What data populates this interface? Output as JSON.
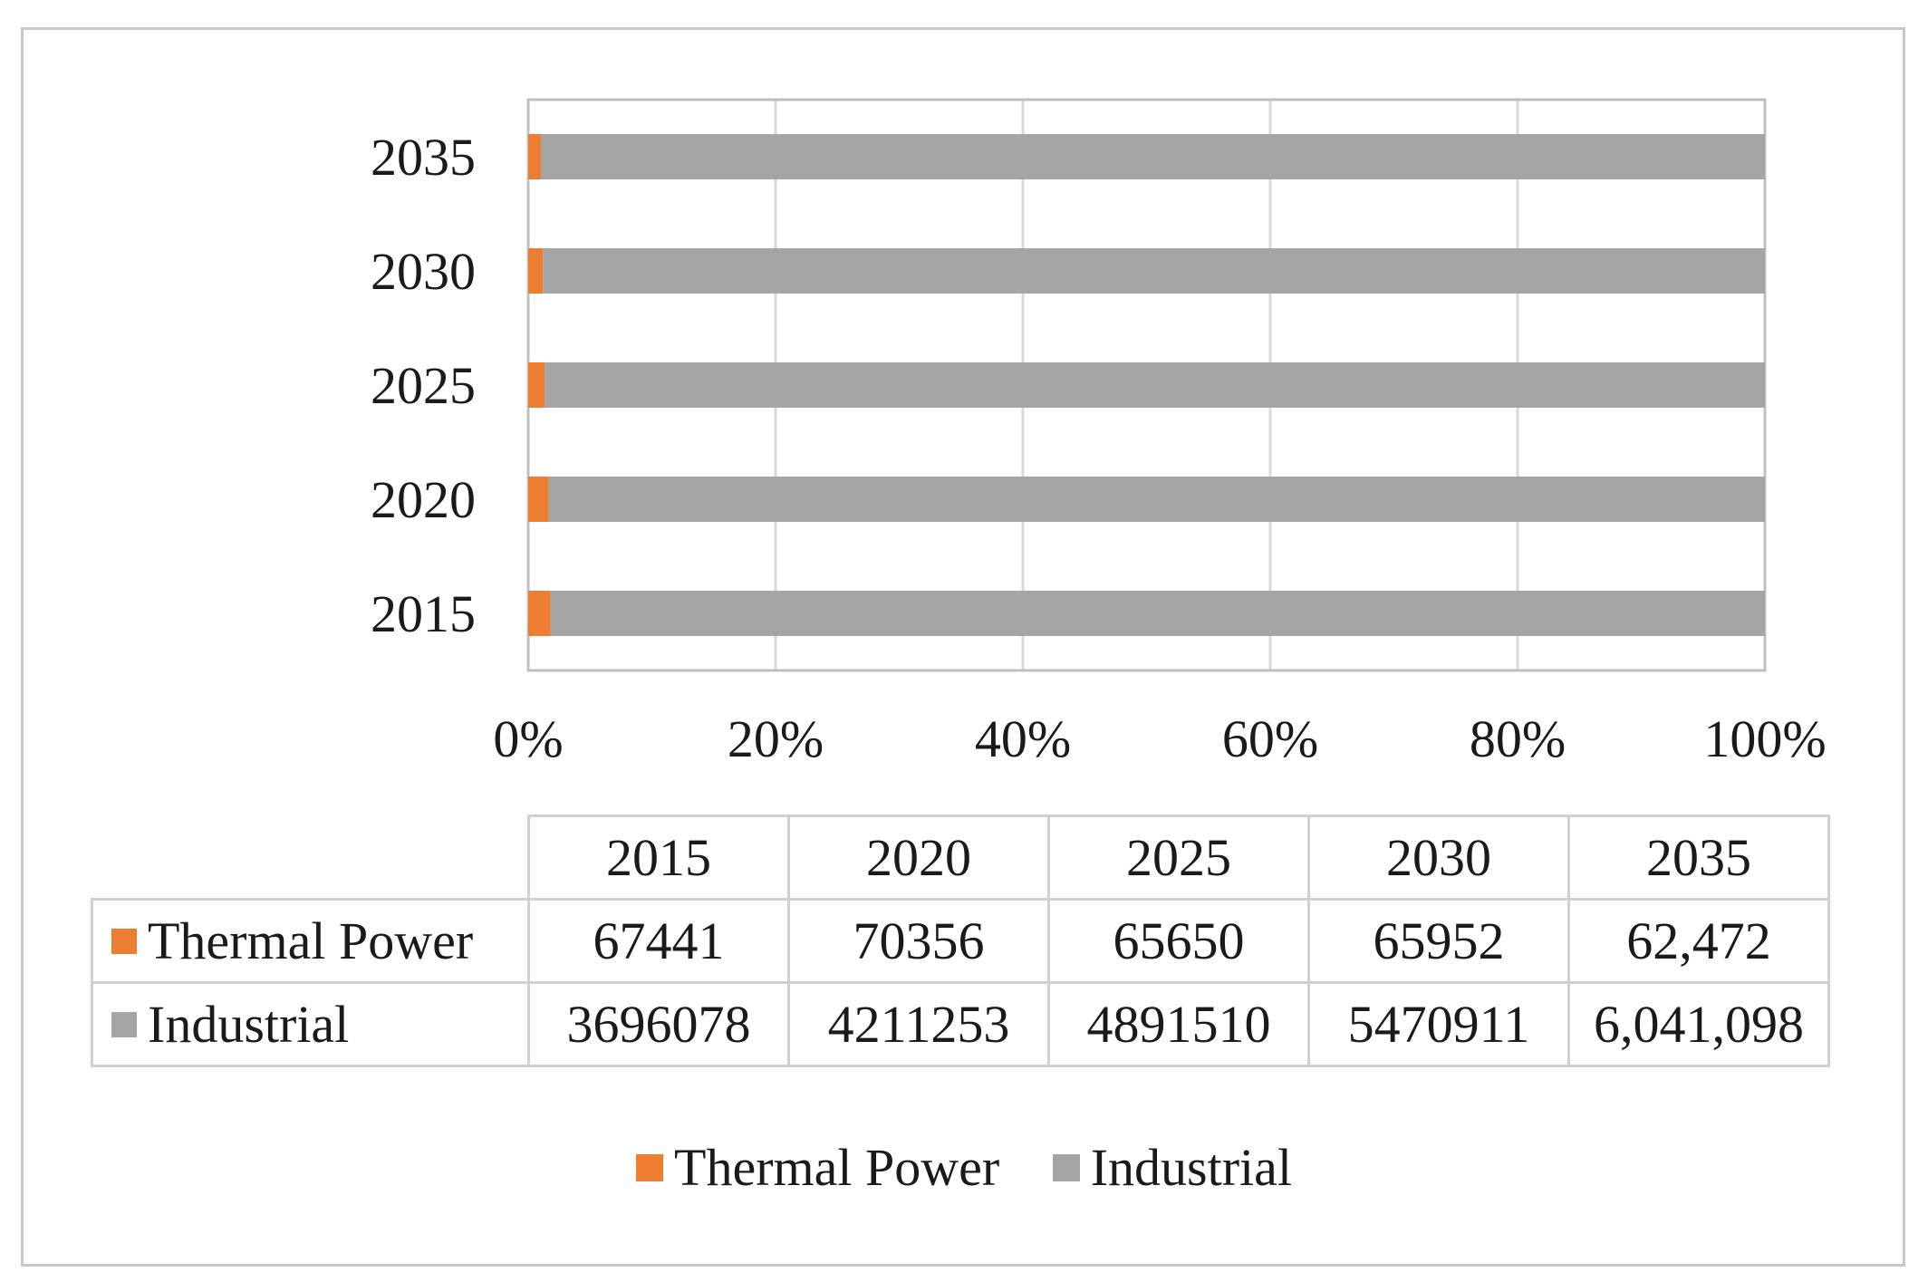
{
  "chart_data": {
    "type": "bar",
    "orientation": "horizontal",
    "stacking": "percent",
    "categories": [
      "2015",
      "2020",
      "2025",
      "2030",
      "2035"
    ],
    "series": [
      {
        "name": "Thermal Power",
        "color": "#ed7d31",
        "values": [
          67441,
          70356,
          65650,
          65952,
          62472
        ],
        "labels": [
          "67441",
          "70356",
          "65650",
          "65952",
          "62,472"
        ]
      },
      {
        "name": "Industrial",
        "color": "#a5a5a5",
        "values": [
          3696078,
          4211253,
          4891510,
          5470911,
          6041098
        ],
        "labels": [
          "3696078",
          "4211253",
          "4891510",
          "5470911",
          "6,041,098"
        ]
      }
    ],
    "xticks": [
      "0%",
      "20%",
      "40%",
      "60%",
      "80%",
      "100%"
    ],
    "xlim": [
      0,
      100
    ],
    "grid": true,
    "legend_position": "bottom",
    "data_table": true
  }
}
